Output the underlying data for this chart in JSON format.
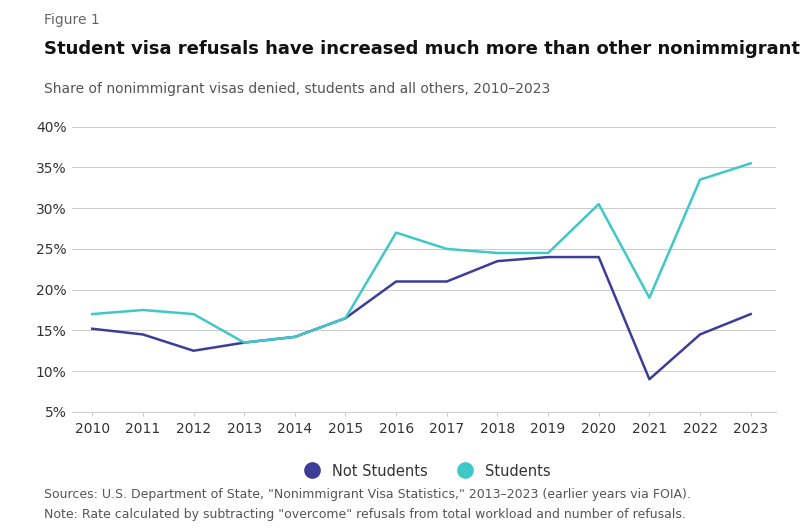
{
  "years": [
    2010,
    2011,
    2012,
    2013,
    2014,
    2015,
    2016,
    2017,
    2018,
    2019,
    2020,
    2021,
    2022,
    2023
  ],
  "not_students": [
    15.2,
    14.5,
    12.5,
    13.5,
    14.2,
    16.5,
    21.0,
    21.0,
    23.5,
    24.0,
    24.0,
    9.0,
    14.5,
    17.0
  ],
  "students": [
    17.0,
    17.5,
    17.0,
    13.5,
    14.2,
    16.5,
    27.0,
    25.0,
    24.5,
    24.5,
    30.5,
    19.0,
    33.5,
    35.5
  ],
  "not_students_color": "#3d3d99",
  "students_color": "#40c8c8",
  "figure_label": "Figure 1",
  "title": "Student visa refusals have increased much more than other nonimmigrant visa denials",
  "subtitle": "Share of nonimmigrant visas denied, students and all others, 2010–2023",
  "ylim_min": 5,
  "ylim_max": 40,
  "yticks": [
    5,
    10,
    15,
    20,
    25,
    30,
    35,
    40
  ],
  "source_text": "Sources: U.S. Department of State, \"Nonimmigrant Visa Statistics,\" 2013–2023 (earlier years via FOIA).",
  "note_text": "Note: Rate calculated by subtracting \"overcome\" refusals from total workload and number of refusals.",
  "legend_not_students": "Not Students",
  "legend_students": "Students",
  "background_color": "#ffffff",
  "fig_label_fontsize": 10,
  "title_fontsize": 13,
  "subtitle_fontsize": 10,
  "tick_fontsize": 10,
  "footer_fontsize": 9
}
